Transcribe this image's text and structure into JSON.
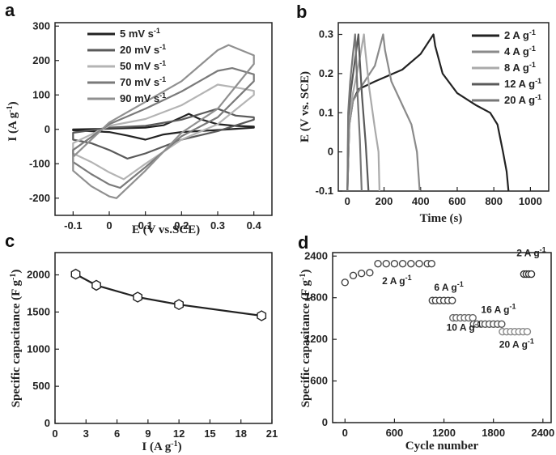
{
  "chart_data": [
    {
      "panel": "a",
      "type": "line",
      "xlabel": "E (V vs.SCE)",
      "ylabel": "I (A g-1)",
      "xlim": [
        -0.15,
        0.45
      ],
      "ylim": [
        -250,
        310
      ],
      "xticks": [
        -0.1,
        0.0,
        0.1,
        0.2,
        0.3,
        0.4
      ],
      "yticks": [
        -200,
        -100,
        0,
        100,
        200,
        300
      ],
      "legend_position": "top-left",
      "series": [
        {
          "name": "5 mV s-1",
          "color": "#222222",
          "x": [
            -0.1,
            0.0,
            0.1,
            0.15,
            0.2,
            0.22,
            0.25,
            0.3,
            0.35,
            0.4,
            0.4,
            0.3,
            0.2,
            0.15,
            0.1,
            0.05,
            0.0,
            -0.1
          ],
          "y": [
            0,
            2,
            5,
            12,
            35,
            45,
            30,
            15,
            10,
            8,
            5,
            -2,
            -8,
            -15,
            -30,
            -18,
            -8,
            -3
          ]
        },
        {
          "name": "20 mV s-1",
          "color": "#5a5a5a",
          "x": [
            -0.1,
            0.0,
            0.1,
            0.2,
            0.3,
            0.35,
            0.4,
            0.4,
            0.3,
            0.2,
            0.1,
            0.05,
            0.0,
            -0.05,
            -0.1
          ],
          "y": [
            -10,
            5,
            10,
            28,
            60,
            40,
            35,
            28,
            -5,
            -30,
            -70,
            -85,
            -60,
            -40,
            -30
          ]
        },
        {
          "name": "50 mV s-1",
          "color": "#b4b4b4",
          "x": [
            -0.1,
            0.0,
            0.1,
            0.2,
            0.3,
            0.36,
            0.4,
            0.4,
            0.3,
            0.2,
            0.1,
            0.04,
            0.0,
            -0.05,
            -0.1
          ],
          "y": [
            -40,
            10,
            30,
            70,
            130,
            120,
            112,
            100,
            15,
            -30,
            -100,
            -145,
            -125,
            -95,
            -70
          ]
        },
        {
          "name": "70 mV s-1",
          "color": "#7a7a7a",
          "x": [
            -0.1,
            0.0,
            0.1,
            0.2,
            0.3,
            0.34,
            0.4,
            0.4,
            0.3,
            0.2,
            0.1,
            0.03,
            0.0,
            -0.05,
            -0.1
          ],
          "y": [
            -60,
            15,
            60,
            110,
            170,
            178,
            160,
            140,
            35,
            -20,
            -110,
            -170,
            -160,
            -130,
            -95
          ]
        },
        {
          "name": "90 mV s-1",
          "color": "#909090",
          "x": [
            -0.1,
            0.0,
            0.1,
            0.2,
            0.3,
            0.33,
            0.4,
            0.4,
            0.3,
            0.2,
            0.1,
            0.02,
            0.0,
            -0.05,
            -0.1
          ],
          "y": [
            -80,
            20,
            80,
            140,
            230,
            245,
            215,
            190,
            60,
            -10,
            -120,
            -200,
            -195,
            -165,
            -120
          ]
        }
      ]
    },
    {
      "panel": "b",
      "type": "line",
      "xlabel": "Time (s)",
      "ylabel": "E (V vs. SCE)",
      "xlim": [
        -50,
        1100
      ],
      "ylim": [
        -0.1,
        0.33
      ],
      "xticks": [
        0,
        200,
        400,
        600,
        800,
        1000
      ],
      "yticks": [
        -0.1,
        0.0,
        0.1,
        0.2,
        0.3
      ],
      "legend_position": "top-right",
      "series": [
        {
          "name": "2 A g-1",
          "color": "#222222",
          "x": [
            0,
            10,
            30,
            60,
            150,
            300,
            400,
            470,
            480,
            520,
            600,
            700,
            780,
            820,
            850,
            870,
            880
          ],
          "y": [
            -0.1,
            0.07,
            0.13,
            0.16,
            0.18,
            0.21,
            0.25,
            0.3,
            0.27,
            0.2,
            0.15,
            0.12,
            0.1,
            0.07,
            0.0,
            -0.05,
            -0.1
          ]
        },
        {
          "name": "4 A g-1",
          "color": "#8a8a8a",
          "x": [
            0,
            10,
            30,
            80,
            150,
            195,
            205,
            240,
            300,
            350,
            380,
            395
          ],
          "y": [
            -0.1,
            0.07,
            0.13,
            0.17,
            0.22,
            0.3,
            0.26,
            0.18,
            0.12,
            0.07,
            0.0,
            -0.1
          ]
        },
        {
          "name": "8 A g-1",
          "color": "#aaaaaa",
          "x": [
            0,
            8,
            30,
            60,
            90,
            95,
            120,
            150,
            170,
            175
          ],
          "y": [
            -0.1,
            0.08,
            0.15,
            0.22,
            0.3,
            0.27,
            0.16,
            0.06,
            0.0,
            -0.1
          ]
        },
        {
          "name": "12 A g-1",
          "color": "#5a5a5a",
          "x": [
            0,
            5,
            20,
            40,
            60,
            64,
            80,
            100,
            115
          ],
          "y": [
            -0.1,
            0.09,
            0.16,
            0.23,
            0.3,
            0.26,
            0.14,
            0.02,
            -0.1
          ]
        },
        {
          "name": "20 A g-1",
          "color": "#777777",
          "x": [
            0,
            4,
            15,
            30,
            42,
            46,
            55,
            68,
            78
          ],
          "y": [
            -0.1,
            0.1,
            0.18,
            0.25,
            0.3,
            0.26,
            0.15,
            0.03,
            -0.1
          ]
        }
      ]
    },
    {
      "panel": "c",
      "type": "line",
      "xlabel": "I (A g-1)",
      "ylabel": "Specific capacitance (F g-1)",
      "xlim": [
        0,
        21
      ],
      "ylim": [
        0,
        2300
      ],
      "xticks": [
        0,
        3,
        6,
        9,
        12,
        15,
        18,
        21
      ],
      "yticks": [
        0,
        500,
        1000,
        1500,
        2000
      ],
      "series": [
        {
          "name": "",
          "color": "#222222",
          "x": [
            2,
            4,
            8,
            12,
            20
          ],
          "y": [
            2010,
            1860,
            1700,
            1600,
            1450
          ]
        }
      ]
    },
    {
      "panel": "d",
      "type": "scatter",
      "xlabel": "Cycle number",
      "ylabel": "Specific capacitance (F g-1)",
      "xlim": [
        -150,
        2500
      ],
      "ylim": [
        0,
        2450
      ],
      "xticks": [
        0,
        600,
        1200,
        1800,
        2400
      ],
      "yticks": [
        0,
        600,
        1200,
        1800,
        2400
      ],
      "annotations": [
        "2 A g-1",
        "6 A g-1",
        "10 A g-1",
        "16 A g-1",
        "20 A g-1",
        "2 A g-1"
      ],
      "series": [
        {
          "name": "",
          "color": "#444444",
          "x": [
            0,
            100,
            200,
            300,
            400,
            500,
            600,
            700,
            800,
            900,
            1000,
            1050
          ],
          "y": [
            2020,
            2120,
            2150,
            2160,
            2290,
            2290,
            2290,
            2290,
            2290,
            2290,
            2290,
            2290
          ]
        },
        {
          "name": "",
          "color": "#444444",
          "x": [
            1060,
            1100,
            1150,
            1200,
            1250,
            1300
          ],
          "y": [
            1760,
            1760,
            1760,
            1760,
            1760,
            1760
          ]
        },
        {
          "name": "",
          "color": "#666666",
          "x": [
            1310,
            1350,
            1400,
            1450,
            1500,
            1550
          ],
          "y": [
            1510,
            1510,
            1510,
            1510,
            1510,
            1510
          ]
        },
        {
          "name": "",
          "color": "#555555",
          "x": [
            1560,
            1600,
            1650,
            1700,
            1750,
            1800,
            1850,
            1900
          ],
          "y": [
            1420,
            1420,
            1420,
            1420,
            1420,
            1420,
            1420,
            1420
          ]
        },
        {
          "name": "",
          "color": "#888888",
          "x": [
            1910,
            1960,
            2010,
            2060,
            2110,
            2160,
            2210
          ],
          "y": [
            1310,
            1310,
            1310,
            1310,
            1310,
            1310,
            1310
          ]
        },
        {
          "name": "",
          "color": "#333333",
          "x": [
            2170,
            2200,
            2230,
            2260
          ],
          "y": [
            2140,
            2140,
            2140,
            2140
          ]
        }
      ]
    }
  ]
}
